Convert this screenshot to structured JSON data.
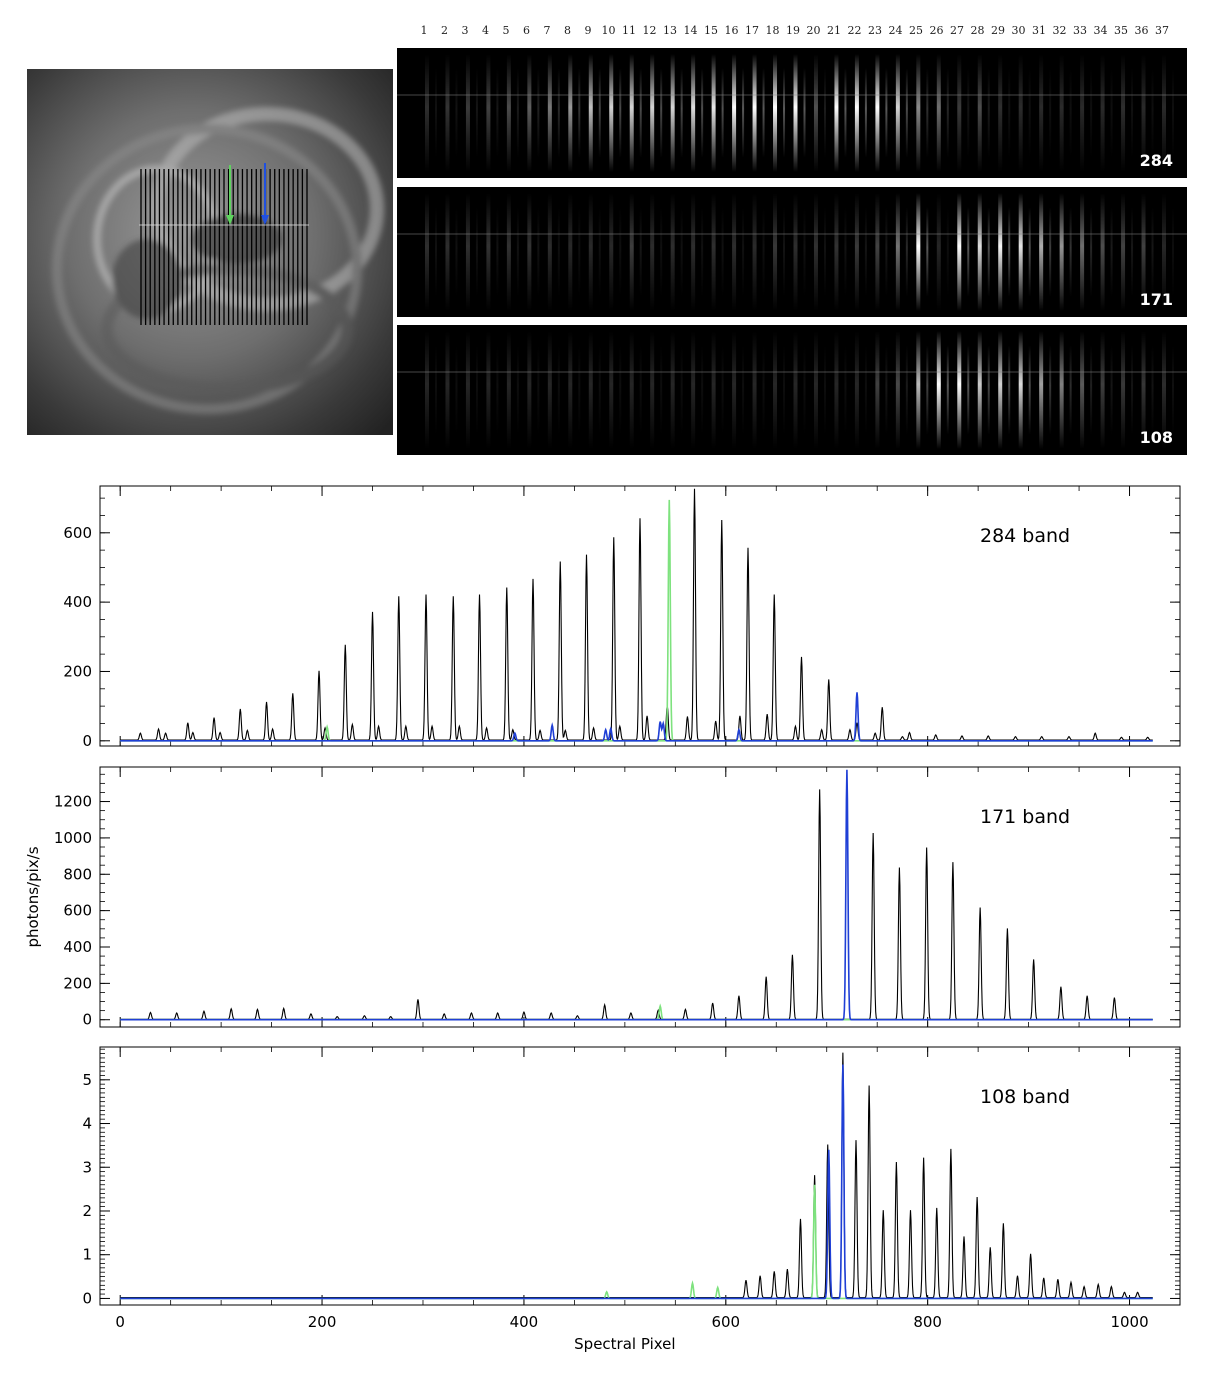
{
  "colors": {
    "black_series": "#000000",
    "green_series": "#7ee27e",
    "blue_series": "#1f3fd6",
    "detector_bg": "#000000"
  },
  "context_image": {
    "alt": "solar disk image with spectrograph slit grid",
    "slit_count": 37,
    "arrow_colors": [
      "green",
      "blue"
    ]
  },
  "detector_panels": [
    {
      "label": "284"
    },
    {
      "label": "171"
    },
    {
      "label": "108"
    }
  ],
  "slot_numbers": [
    "1",
    "2",
    "3",
    "4",
    "5",
    "6",
    "7",
    "8",
    "9",
    "10",
    "11",
    "12",
    "13",
    "14",
    "15",
    "16",
    "17",
    "18",
    "19",
    "20",
    "21",
    "22",
    "23",
    "24",
    "25",
    "26",
    "27",
    "28",
    "29",
    "30",
    "31",
    "32",
    "33",
    "34",
    "35",
    "36",
    "37"
  ],
  "chart_data": [
    {
      "type": "line",
      "title": "284 band",
      "xlabel": "",
      "ylabel": "",
      "xlim": [
        -20,
        1050
      ],
      "ylim": [
        -15,
        735
      ],
      "yticks": [
        0,
        200,
        400,
        600
      ],
      "xticks": [
        0,
        200,
        400,
        600,
        800,
        1000
      ],
      "show_xtick_labels": false,
      "series": [
        {
          "color": "black",
          "baseline": 2,
          "peaks": [
            [
              20,
              20
            ],
            [
              38,
              32
            ],
            [
              45,
              20
            ],
            [
              67,
              50
            ],
            [
              72,
              22
            ],
            [
              93,
              65
            ],
            [
              99,
              22
            ],
            [
              119,
              90
            ],
            [
              126,
              28
            ],
            [
              145,
              110
            ],
            [
              151,
              32
            ],
            [
              171,
              135
            ],
            [
              197,
              200
            ],
            [
              203,
              35
            ],
            [
              223,
              275
            ],
            [
              230,
              45
            ],
            [
              250,
              370
            ],
            [
              256,
              40
            ],
            [
              276,
              415
            ],
            [
              283,
              40
            ],
            [
              303,
              420
            ],
            [
              309,
              40
            ],
            [
              330,
              415
            ],
            [
              336,
              40
            ],
            [
              356,
              420
            ],
            [
              363,
              35
            ],
            [
              383,
              440
            ],
            [
              389,
              30
            ],
            [
              409,
              465
            ],
            [
              416,
              28
            ],
            [
              436,
              515
            ],
            [
              441,
              28
            ],
            [
              462,
              535
            ],
            [
              469,
              35
            ],
            [
              489,
              585
            ],
            [
              495,
              40
            ],
            [
              515,
              640
            ],
            [
              522,
              70
            ],
            [
              542,
              100
            ],
            [
              562,
              68
            ],
            [
              569,
              725
            ],
            [
              590,
              55
            ],
            [
              596,
              635
            ],
            [
              614,
              70
            ],
            [
              622,
              555
            ],
            [
              641,
              75
            ],
            [
              648,
              420
            ],
            [
              669,
              40
            ],
            [
              675,
              240
            ],
            [
              695,
              30
            ],
            [
              702,
              175
            ],
            [
              723,
              30
            ],
            [
              730,
              50
            ],
            [
              748,
              20
            ],
            [
              755,
              95
            ],
            [
              775,
              10
            ],
            [
              782,
              22
            ],
            [
              808,
              15
            ],
            [
              834,
              12
            ],
            [
              860,
              12
            ],
            [
              887,
              10
            ],
            [
              913,
              10
            ],
            [
              940,
              10
            ],
            [
              966,
              20
            ],
            [
              992,
              8
            ],
            [
              1018,
              8
            ]
          ]
        },
        {
          "color": "green",
          "baseline": 0,
          "peaks": [
            [
              205,
              40
            ],
            [
              544,
              695
            ]
          ]
        },
        {
          "color": "blue",
          "baseline": 0,
          "peaks": [
            [
              391,
              22
            ],
            [
              428,
              45
            ],
            [
              481,
              32
            ],
            [
              486,
              35
            ],
            [
              535,
              55
            ],
            [
              538,
              50
            ],
            [
              613,
              32
            ],
            [
              730,
              140
            ]
          ]
        }
      ],
      "annotation": "284 band"
    },
    {
      "type": "line",
      "title": "171 band",
      "xlabel": "",
      "ylabel": "photons/pix/s",
      "xlim": [
        -20,
        1050
      ],
      "ylim": [
        -40,
        1390
      ],
      "yticks": [
        0,
        200,
        400,
        600,
        800,
        1000,
        1200
      ],
      "xticks": [
        0,
        200,
        400,
        600,
        800,
        1000
      ],
      "show_xtick_labels": false,
      "series": [
        {
          "color": "black",
          "baseline": 2,
          "peaks": [
            [
              30,
              38
            ],
            [
              56,
              35
            ],
            [
              83,
              45
            ],
            [
              110,
              58
            ],
            [
              136,
              55
            ],
            [
              162,
              60
            ],
            [
              189,
              30
            ],
            [
              215,
              15
            ],
            [
              242,
              20
            ],
            [
              268,
              15
            ],
            [
              295,
              110
            ],
            [
              321,
              30
            ],
            [
              348,
              35
            ],
            [
              374,
              35
            ],
            [
              400,
              40
            ],
            [
              427,
              35
            ],
            [
              453,
              20
            ],
            [
              480,
              80
            ],
            [
              506,
              35
            ],
            [
              533,
              50
            ],
            [
              560,
              55
            ],
            [
              587,
              90
            ],
            [
              613,
              130
            ],
            [
              640,
              235
            ],
            [
              666,
              355
            ],
            [
              693,
              1265
            ],
            [
              746,
              1025
            ],
            [
              772,
              835
            ],
            [
              799,
              945
            ],
            [
              825,
              865
            ],
            [
              852,
              615
            ],
            [
              879,
              500
            ],
            [
              905,
              330
            ],
            [
              932,
              180
            ],
            [
              958,
              130
            ],
            [
              985,
              120
            ]
          ]
        },
        {
          "color": "green",
          "baseline": 0,
          "peaks": [
            [
              535,
              75
            ]
          ]
        },
        {
          "color": "blue",
          "baseline": 0,
          "peaks": [
            [
              720,
              1375
            ]
          ]
        }
      ],
      "annotation": "171 band"
    },
    {
      "type": "line",
      "title": "108 band",
      "xlabel": "Spectral Pixel",
      "ylabel": "",
      "xlim": [
        -20,
        1050
      ],
      "ylim": [
        -0.15,
        5.75
      ],
      "yticks": [
        0,
        1,
        2,
        3,
        4,
        5
      ],
      "xticks": [
        0,
        200,
        400,
        600,
        800,
        1000
      ],
      "show_xtick_labels": true,
      "series": [
        {
          "color": "black",
          "baseline": 0.02,
          "peaks": [
            [
              674,
              1.8
            ],
            [
              688,
              2.8
            ],
            [
              701,
              3.5
            ],
            [
              716,
              5.6
            ],
            [
              729,
              3.6
            ],
            [
              742,
              4.85
            ],
            [
              756,
              2.0
            ],
            [
              769,
              3.1
            ],
            [
              783,
              2.0
            ],
            [
              796,
              3.2
            ],
            [
              809,
              2.05
            ],
            [
              823,
              3.4
            ],
            [
              836,
              1.4
            ],
            [
              849,
              2.3
            ],
            [
              862,
              1.15
            ],
            [
              875,
              1.7
            ],
            [
              889,
              0.5
            ],
            [
              902,
              1.0
            ],
            [
              915,
              0.45
            ],
            [
              929,
              0.42
            ],
            [
              942,
              0.35
            ],
            [
              955,
              0.25
            ],
            [
              969,
              0.3
            ],
            [
              982,
              0.25
            ],
            [
              995,
              0.12
            ],
            [
              1008,
              0.12
            ],
            [
              620,
              0.4
            ],
            [
              634,
              0.5
            ],
            [
              648,
              0.6
            ],
            [
              661,
              0.65
            ]
          ]
        },
        {
          "color": "green",
          "baseline": 0,
          "peaks": [
            [
              567,
              0.35
            ],
            [
              592,
              0.25
            ],
            [
              482,
              0.15
            ],
            [
              688,
              2.6
            ]
          ]
        },
        {
          "color": "blue",
          "baseline": 0,
          "peaks": [
            [
              702,
              3.4
            ],
            [
              716,
              5.35
            ]
          ]
        }
      ],
      "annotation": "108 band"
    }
  ]
}
